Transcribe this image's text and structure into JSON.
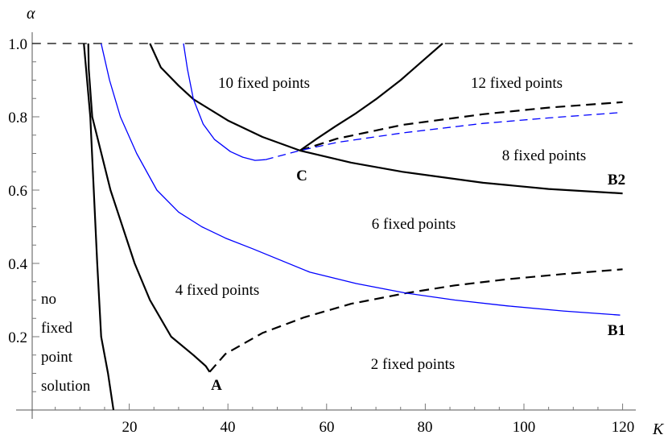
{
  "chart_data": {
    "type": "line",
    "xlabel": "K",
    "ylabel": "α",
    "xlim": [
      0,
      122
    ],
    "ylim": [
      0,
      1.05
    ],
    "grid": false,
    "x_ticks": [
      "20",
      "40",
      "60",
      "80",
      "100",
      "120"
    ],
    "y_ticks": [
      "0.2",
      "0.4",
      "0.6",
      "0.8",
      "1.0"
    ],
    "series": [
      {
        "color": "#000000",
        "dash": true,
        "points": [
          [
            0.3,
            1.0
          ],
          [
            122,
            1.0
          ]
        ]
      },
      {
        "color": "#000000",
        "dash": false,
        "points": [
          [
            10.8,
            1.0
          ],
          [
            12.1,
            0.8
          ],
          [
            12.8,
            0.6
          ],
          [
            13.5,
            0.4
          ],
          [
            14.3,
            0.2
          ],
          [
            15.7,
            0.1
          ],
          [
            16.8,
            0.0
          ]
        ]
      },
      {
        "color": "#000000",
        "dash": false,
        "points": [
          [
            11.7,
            1.0
          ],
          [
            11.8,
            0.93
          ],
          [
            12.5,
            0.8
          ],
          [
            16.2,
            0.6
          ],
          [
            21.1,
            0.4
          ],
          [
            24.2,
            0.3
          ],
          [
            28.5,
            0.2
          ],
          [
            33.0,
            0.15
          ],
          [
            35.5,
            0.12
          ],
          [
            36.3,
            0.104
          ]
        ]
      },
      {
        "color": "#000000",
        "dash": true,
        "points": [
          [
            36.3,
            0.104
          ],
          [
            39.5,
            0.153
          ],
          [
            47,
            0.21
          ],
          [
            55.5,
            0.253
          ],
          [
            65,
            0.29
          ],
          [
            76.1,
            0.319
          ],
          [
            86,
            0.34
          ],
          [
            96.7,
            0.357
          ],
          [
            108,
            0.371
          ],
          [
            120,
            0.384
          ]
        ]
      },
      {
        "color": "#0000ff",
        "dash": false,
        "points": [
          [
            14.3,
            1.0
          ],
          [
            16,
            0.9
          ],
          [
            18.2,
            0.8
          ],
          [
            21.5,
            0.7
          ],
          [
            25.6,
            0.6
          ],
          [
            30,
            0.54
          ],
          [
            34.7,
            0.5
          ],
          [
            39.5,
            0.469
          ],
          [
            45,
            0.44
          ],
          [
            56.6,
            0.376
          ],
          [
            66,
            0.345
          ],
          [
            76.1,
            0.319
          ],
          [
            86,
            0.3
          ],
          [
            96.7,
            0.284
          ],
          [
            108,
            0.27
          ],
          [
            119.5,
            0.259
          ]
        ]
      },
      {
        "color": "#000000",
        "dash": false,
        "points": [
          [
            24.2,
            1.0
          ],
          [
            26.4,
            0.935
          ],
          [
            30,
            0.885
          ],
          [
            33,
            0.848
          ],
          [
            40,
            0.79
          ],
          [
            47,
            0.745
          ],
          [
            54.6,
            0.708
          ],
          [
            65,
            0.675
          ],
          [
            75.4,
            0.65
          ],
          [
            91.7,
            0.62
          ],
          [
            105,
            0.603
          ],
          [
            120,
            0.591
          ]
        ]
      },
      {
        "color": "#000000",
        "dash": false,
        "points": [
          [
            54.6,
            0.708
          ],
          [
            58,
            0.74
          ],
          [
            61.8,
            0.774
          ],
          [
            66,
            0.81
          ],
          [
            70,
            0.848
          ],
          [
            75,
            0.9
          ],
          [
            79,
            0.947
          ],
          [
            83.5,
            1.0
          ]
        ]
      },
      {
        "color": "#000000",
        "dash": true,
        "points": [
          [
            54.6,
            0.708
          ],
          [
            62,
            0.74
          ],
          [
            75.4,
            0.778
          ],
          [
            91.7,
            0.807
          ],
          [
            105,
            0.825
          ],
          [
            120,
            0.84
          ]
        ]
      },
      {
        "color": "#0000ff",
        "dash": false,
        "points": [
          [
            31,
            1.0
          ],
          [
            31.8,
            0.93
          ],
          [
            33,
            0.848
          ],
          [
            35,
            0.78
          ],
          [
            37.3,
            0.738
          ],
          [
            40.5,
            0.705
          ],
          [
            43,
            0.69
          ],
          [
            45.5,
            0.681
          ],
          [
            47.6,
            0.683
          ]
        ]
      },
      {
        "color": "#0000ff",
        "dash": true,
        "points": [
          [
            47.6,
            0.683
          ],
          [
            54.6,
            0.708
          ],
          [
            62,
            0.73
          ],
          [
            75.4,
            0.756
          ],
          [
            91.7,
            0.782
          ],
          [
            105,
            0.797
          ],
          [
            119,
            0.811
          ]
        ]
      }
    ],
    "annotations": {
      "ten": "10 fixed points",
      "twelve": "12 fixed points",
      "eight": "8 fixed points",
      "six": "6 fixed points",
      "four": "4 fixed points",
      "two": "2 fixed points",
      "none": [
        "no",
        "fixed",
        "point",
        "solution"
      ],
      "A": "A",
      "B1": "B1",
      "B2": "B2",
      "C": "C"
    }
  }
}
